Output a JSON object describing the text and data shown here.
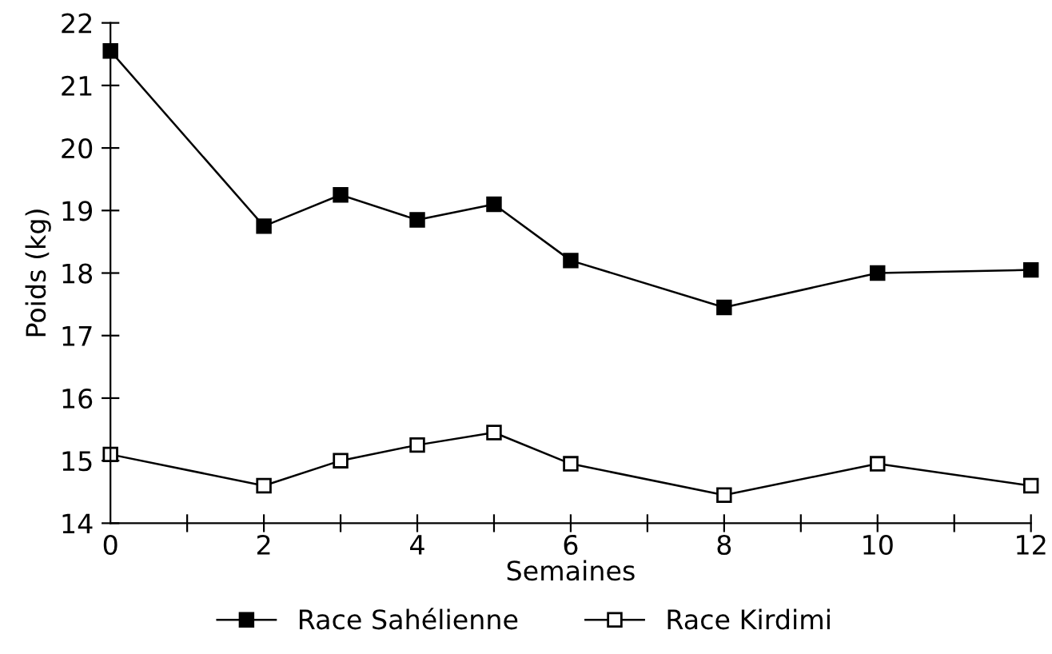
{
  "chart_data": {
    "type": "line",
    "xlabel": "Semaines",
    "ylabel": "Poids (kg)",
    "x": [
      0,
      2,
      3,
      4,
      5,
      6,
      8,
      10,
      12
    ],
    "series": [
      {
        "name": "Race Sahélienne",
        "color": "#000000",
        "values": [
          21.55,
          18.75,
          19.25,
          18.85,
          19.1,
          18.2,
          17.45,
          18.0,
          18.05
        ]
      },
      {
        "name": "Race Kirdimi",
        "color": "#000000",
        "values": [
          15.1,
          14.6,
          15.0,
          15.25,
          15.45,
          14.95,
          14.45,
          14.95,
          14.6
        ]
      }
    ],
    "xlim": [
      0,
      12
    ],
    "ylim": [
      14,
      22
    ],
    "xticks": [
      0,
      {
        "value": 1,
        "label": null
      },
      2,
      {
        "value": 3,
        "label": null
      },
      4,
      {
        "value": 5,
        "label": null
      },
      6,
      {
        "value": 7,
        "label": null
      },
      8,
      {
        "value": 9,
        "label": null
      },
      10,
      {
        "value": 11,
        "label": null
      },
      12
    ],
    "yticks": [
      14,
      15,
      16,
      17,
      18,
      19,
      20,
      21,
      22
    ],
    "grid": false,
    "legend": "bottom",
    "marker": "square",
    "line_style": "solid"
  }
}
